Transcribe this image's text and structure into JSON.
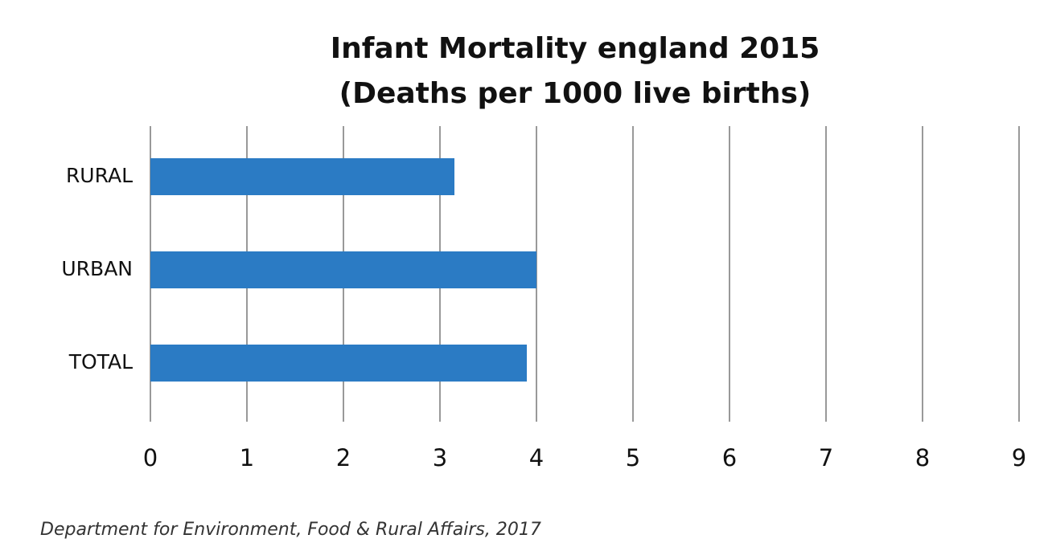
{
  "chart_data": {
    "type": "bar",
    "orientation": "horizontal",
    "title": "Infant Mortality england 2015",
    "subtitle": "(Deaths per 1000 live births)",
    "categories": [
      "RURAL",
      "URBAN",
      "TOTAL"
    ],
    "values": [
      3.15,
      4.0,
      3.9
    ],
    "color": "#2b7bc4",
    "xlim": [
      0,
      9
    ],
    "xticks": [
      0,
      1,
      2,
      3,
      4,
      5,
      6,
      7,
      8,
      9
    ],
    "grid": true,
    "source": "Department for Environment, Food & Rural Affairs, 2017"
  }
}
